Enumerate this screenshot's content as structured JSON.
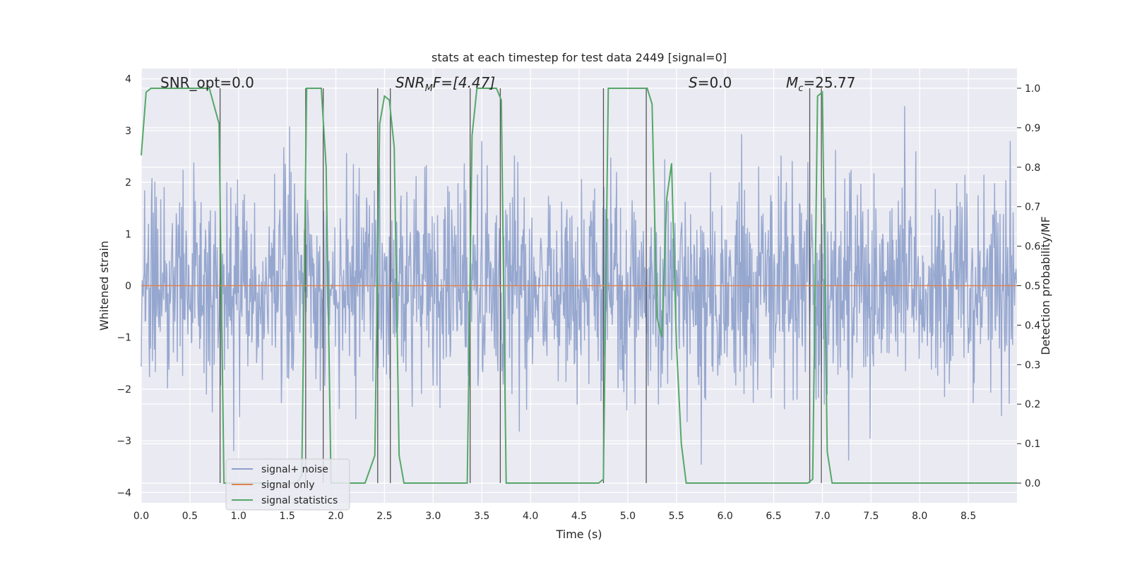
{
  "chart_data": {
    "type": "line",
    "title": "stats at each timestep for test data 2449 [signal=0]",
    "xlabel": "Time (s)",
    "ylabel": "Whitened strain",
    "y2label": "Detection probability/MF",
    "xlim": [
      0.0,
      9.0
    ],
    "ylim": [
      -4.2,
      4.2
    ],
    "y2lim": [
      -0.05,
      1.05
    ],
    "xticks": [
      "0.0",
      "0.5",
      "1.0",
      "1.5",
      "2.0",
      "2.5",
      "3.0",
      "3.5",
      "4.0",
      "4.5",
      "5.0",
      "5.5",
      "6.0",
      "6.5",
      "7.0",
      "7.5",
      "8.0",
      "8.5"
    ],
    "yticks": [
      "−4",
      "−3",
      "−2",
      "−1",
      "0",
      "1",
      "2",
      "3",
      "4"
    ],
    "y2ticks": [
      "0.0",
      "0.1",
      "0.2",
      "0.3",
      "0.4",
      "0.5",
      "0.6",
      "0.7",
      "0.8",
      "0.9",
      "1.0"
    ],
    "grid": true,
    "legend_position": "lower-left",
    "annotations": {
      "snr_opt": "SNR_opt=0.0",
      "snr_mf_main": "SNR",
      "snr_mf_sub": "M",
      "snr_mf_rest": "F=[4.47]",
      "s_var": "S",
      "s_rest": "=0.0",
      "mc_main": "M",
      "mc_sub": "c",
      "mc_rest": "=25.77"
    },
    "series": [
      {
        "name": "signal+ noise",
        "color": "#8da0cb",
        "kind": "noise",
        "sample_rate_hz": 200,
        "sigma": 1.0
      },
      {
        "name": "signal only",
        "color": "#dd8452",
        "kind": "constant",
        "value": 0.0
      },
      {
        "name": "signal statistics",
        "color": "#55a868",
        "axis": "right",
        "x": [
          0.0,
          0.05,
          0.1,
          0.2,
          0.3,
          0.4,
          0.5,
          0.6,
          0.7,
          0.8,
          0.85,
          0.9,
          1.0,
          1.2,
          1.4,
          1.6,
          1.65,
          1.7,
          1.75,
          1.8,
          1.85,
          1.9,
          1.95,
          2.0,
          2.1,
          2.2,
          2.3,
          2.4,
          2.45,
          2.5,
          2.55,
          2.6,
          2.65,
          2.7,
          2.8,
          3.0,
          3.2,
          3.35,
          3.4,
          3.45,
          3.5,
          3.6,
          3.65,
          3.7,
          3.75,
          3.8,
          4.0,
          4.4,
          4.7,
          4.75,
          4.8,
          5.0,
          5.15,
          5.2,
          5.25,
          5.3,
          5.35,
          5.4,
          5.45,
          5.5,
          5.55,
          5.6,
          6.0,
          6.5,
          6.85,
          6.9,
          6.95,
          7.0,
          7.05,
          7.1,
          7.5,
          8.0,
          8.5,
          9.0
        ],
        "y": [
          0.83,
          0.99,
          1.0,
          1.0,
          1.0,
          1.0,
          1.0,
          1.0,
          1.0,
          0.91,
          0.0,
          0.0,
          0.0,
          0.0,
          0.0,
          0.0,
          0.02,
          1.0,
          1.0,
          1.0,
          1.0,
          0.8,
          0.0,
          0.0,
          0.0,
          0.0,
          0.0,
          0.07,
          0.91,
          0.98,
          0.97,
          0.85,
          0.07,
          0.0,
          0.0,
          0.0,
          0.0,
          0.0,
          0.88,
          1.0,
          1.0,
          1.0,
          1.0,
          0.97,
          0.0,
          0.0,
          0.0,
          0.0,
          0.0,
          0.01,
          1.0,
          1.0,
          1.0,
          1.0,
          0.96,
          0.42,
          0.37,
          0.72,
          0.81,
          0.35,
          0.1,
          0.0,
          0.0,
          0.0,
          0.0,
          0.01,
          0.98,
          0.99,
          0.08,
          0.0,
          0.0,
          0.0,
          0.0,
          0.0
        ]
      }
    ],
    "vlines": [
      0.81,
      1.69,
      1.87,
      2.43,
      2.56,
      3.38,
      3.69,
      4.75,
      5.19,
      6.87,
      6.99
    ],
    "vline_color": "#555555"
  }
}
